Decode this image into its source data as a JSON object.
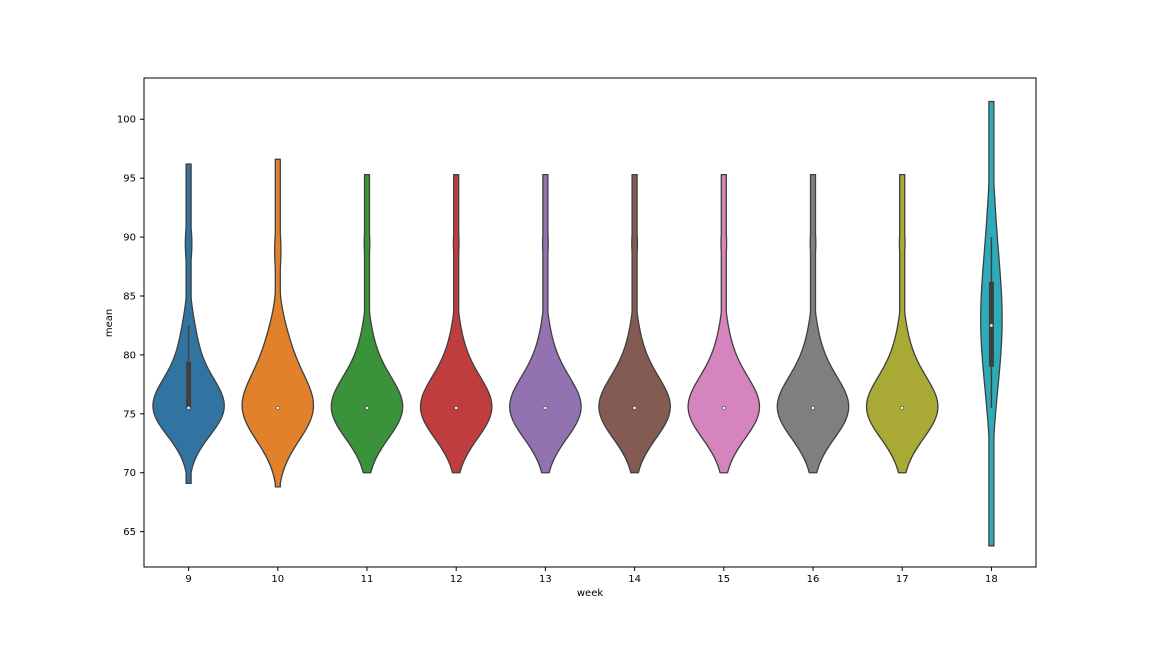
{
  "chart_data": {
    "type": "violin",
    "title": "",
    "xlabel": "week",
    "ylabel": "mean",
    "categories": [
      "9",
      "10",
      "11",
      "12",
      "13",
      "14",
      "15",
      "16",
      "17",
      "18"
    ],
    "ylim": [
      62.0,
      103.5
    ],
    "yticks": [
      65,
      70,
      75,
      80,
      85,
      90,
      95,
      100
    ],
    "grid": false,
    "series": [
      {
        "category": "9",
        "color": "#3274a1",
        "min": 69.1,
        "max": 96.2,
        "median": 75.5,
        "q1": 75.5,
        "q3": 79.4,
        "whisker_low": 75.5,
        "whisker_high": 82.5
      },
      {
        "category": "10",
        "color": "#e1812c",
        "min": 68.8,
        "max": 96.6,
        "median": 75.5,
        "q1": 75.5,
        "q3": 75.5,
        "whisker_low": 75.5,
        "whisker_high": 75.5
      },
      {
        "category": "11",
        "color": "#3a923a",
        "min": 70.0,
        "max": 95.3,
        "median": 75.5,
        "q1": 75.5,
        "q3": 75.5,
        "whisker_low": 75.5,
        "whisker_high": 75.5
      },
      {
        "category": "12",
        "color": "#c03d3e",
        "min": 70.0,
        "max": 95.3,
        "median": 75.5,
        "q1": 75.5,
        "q3": 75.5,
        "whisker_low": 75.5,
        "whisker_high": 75.5
      },
      {
        "category": "13",
        "color": "#9372b2",
        "min": 70.0,
        "max": 95.3,
        "median": 75.5,
        "q1": 75.5,
        "q3": 75.5,
        "whisker_low": 75.5,
        "whisker_high": 75.5
      },
      {
        "category": "14",
        "color": "#845b53",
        "min": 70.0,
        "max": 95.3,
        "median": 75.5,
        "q1": 75.5,
        "q3": 75.5,
        "whisker_low": 75.5,
        "whisker_high": 75.5
      },
      {
        "category": "15",
        "color": "#d684bd",
        "min": 70.0,
        "max": 95.3,
        "median": 75.5,
        "q1": 75.5,
        "q3": 75.5,
        "whisker_low": 75.5,
        "whisker_high": 75.5
      },
      {
        "category": "16",
        "color": "#7f7f7f",
        "min": 70.0,
        "max": 95.3,
        "median": 75.5,
        "q1": 75.5,
        "q3": 75.5,
        "whisker_low": 75.5,
        "whisker_high": 75.5
      },
      {
        "category": "17",
        "color": "#a9aa35",
        "min": 70.0,
        "max": 95.3,
        "median": 75.5,
        "q1": 75.5,
        "q3": 75.5,
        "whisker_low": 75.5,
        "whisker_high": 75.5
      },
      {
        "category": "18",
        "color": "#2eabb8",
        "min": 63.8,
        "max": 101.5,
        "median": 82.5,
        "q1": 79.0,
        "q3": 86.2,
        "whisker_low": 75.5,
        "whisker_high": 90.0
      }
    ]
  }
}
